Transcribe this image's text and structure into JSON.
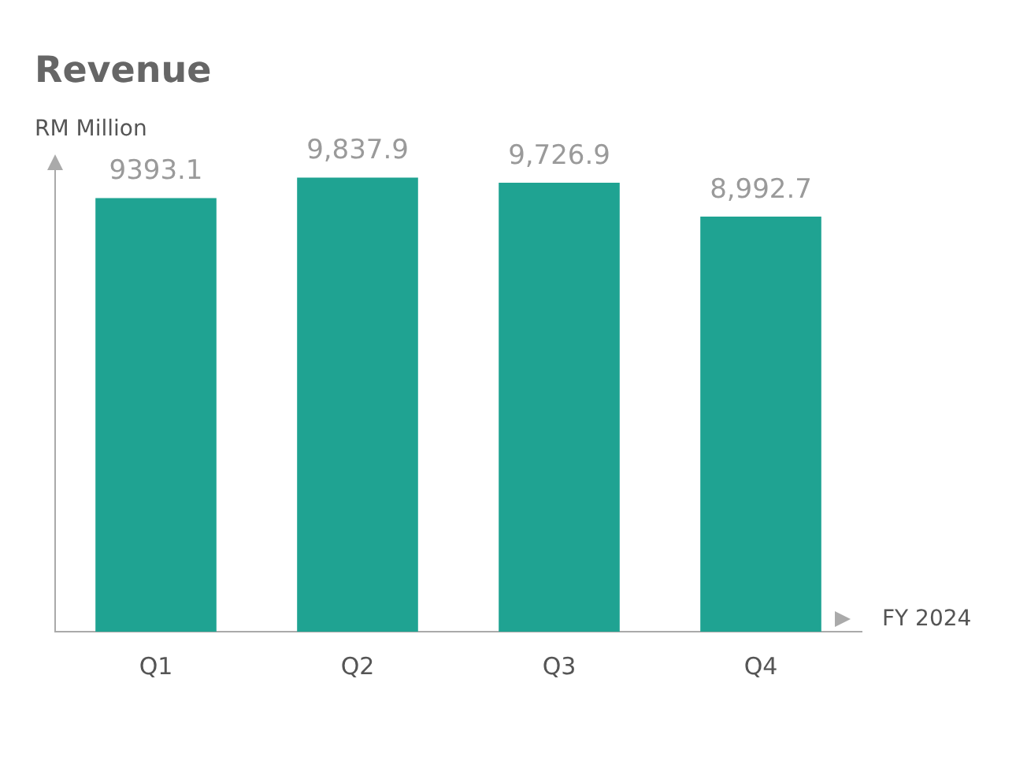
{
  "chart_data": {
    "type": "bar",
    "title": "Revenue",
    "ylabel": "RM Million",
    "xlabel": "FY 2024",
    "categories": [
      "Q1",
      "Q2",
      "Q3",
      "Q4"
    ],
    "values": [
      9393.1,
      9837.9,
      9726.9,
      8992.7
    ],
    "value_labels": [
      "9393.1",
      "9,837.9",
      "9,726.9",
      "8,992.7"
    ],
    "color": "#1fa392",
    "tick_labels": "x",
    "grid": false,
    "legend": false
  }
}
